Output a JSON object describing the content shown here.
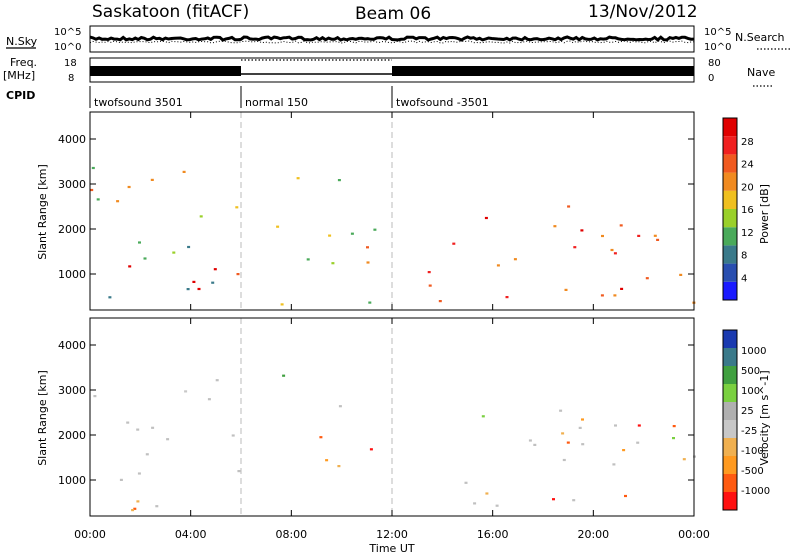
{
  "header": {
    "station": "Saskatoon (fitACF)",
    "beam": "Beam 06",
    "date": "13/Nov/2012"
  },
  "strip_labels": {
    "nsky": "N.Sky",
    "freq_top": "Freq.",
    "freq_bottom": "[MHz]",
    "cpid": "CPID",
    "nsearch": "N.Search",
    "nave": "Nave"
  },
  "strip_ticks": {
    "noise_left_top": "10^5",
    "noise_left_bottom": "10^0",
    "noise_right_top": "10^5",
    "noise_right_bottom": "10^0",
    "freq_top": "18",
    "freq_bottom": "8",
    "nave_top": "80",
    "nave_bottom": "0"
  },
  "cpid_segments": [
    {
      "label": "twofsound 3501",
      "start_hour": 0
    },
    {
      "label": "normal 150",
      "start_hour": 6
    },
    {
      "label": "twofsound -3501",
      "start_hour": 12
    }
  ],
  "colors": {
    "scale_power": [
      "#1a1aff",
      "#2a4fb0",
      "#3a7a8a",
      "#4aaa5a",
      "#9ad02a",
      "#f0c020",
      "#f08a20",
      "#f05a20",
      "#f02020",
      "#e00000"
    ],
    "scale_velocity": [
      "#ff1010",
      "#ff5a10",
      "#ff9a20",
      "#f0b050",
      "#c8c8c8",
      "#b0b0b0",
      "#7ad040",
      "#40a040",
      "#3a7a8a",
      "#1a3ab0"
    ],
    "ground_scatter": "#c0c0c0",
    "divider": "#bbbbbb"
  },
  "chart_data": [
    {
      "type": "heatmap",
      "title": "Power",
      "xlabel": "",
      "ylabel": "Slant Range [km]",
      "x_range_hours": [
        0,
        24
      ],
      "ylim": [
        200,
        4600
      ],
      "y_ticks": [
        "1000",
        "2000",
        "3000",
        "4000"
      ],
      "colorbar": {
        "label": "Power [dB]",
        "range": [
          0,
          32
        ],
        "ticks": [
          "4",
          "8",
          "12",
          "16",
          "20",
          "24",
          "28"
        ]
      },
      "scatter_regions": [
        {
          "t0": 0.0,
          "t1": 6.0,
          "r0": 300,
          "r1": 3400,
          "level": "mixed",
          "value": 14
        },
        {
          "t0": 0.0,
          "t1": 6.0,
          "r0": 400,
          "r1": 1300,
          "level": "strong",
          "value": 26
        },
        {
          "t0": 6.5,
          "t1": 12.0,
          "r0": 300,
          "r1": 2400,
          "level": "mixed",
          "value": 12
        },
        {
          "t0": 7.6,
          "t1": 10.0,
          "r0": 2600,
          "r1": 3500,
          "level": "mixed",
          "value": 14
        },
        {
          "t0": 12.0,
          "t1": 24.0,
          "r0": 300,
          "r1": 2600,
          "level": "strong",
          "value": 24
        },
        {
          "t0": 14.0,
          "t1": 24.0,
          "r0": 350,
          "r1": 700,
          "level": "strong",
          "value": 28
        }
      ]
    },
    {
      "type": "heatmap",
      "title": "Velocity",
      "xlabel": "Time UT",
      "ylabel": "Slant Range [km]",
      "x_range_hours": [
        0,
        24
      ],
      "x_ticks": [
        "00:00",
        "04:00",
        "08:00",
        "12:00",
        "16:00",
        "20:00",
        "00:00"
      ],
      "ylim": [
        200,
        4600
      ],
      "y_ticks": [
        "1000",
        "2000",
        "3000",
        "4000"
      ],
      "colorbar": {
        "label": "Velocity [m s^-1]",
        "ticks": [
          "1000",
          "500",
          "100",
          "25",
          "-25",
          "-100",
          "-500",
          "-1000"
        ]
      },
      "scatter_regions": [
        {
          "t0": 0.0,
          "t1": 6.0,
          "r0": 300,
          "r1": 3300,
          "level": "ground",
          "value": 0
        },
        {
          "t0": 0.0,
          "t1": 6.0,
          "r0": 300,
          "r1": 700,
          "level": "negative",
          "value": -200
        },
        {
          "t0": 7.6,
          "t1": 10.0,
          "r0": 2600,
          "r1": 3500,
          "level": "ground",
          "value": 0
        },
        {
          "t0": 9.0,
          "t1": 12.0,
          "r0": 600,
          "r1": 2000,
          "level": "negative",
          "value": -300
        },
        {
          "t0": 14.0,
          "t1": 24.0,
          "r0": 300,
          "r1": 2600,
          "level": "ground",
          "value": 0
        },
        {
          "t0": 17.0,
          "t1": 24.0,
          "r0": 1200,
          "r1": 2400,
          "level": "negative",
          "value": -100
        }
      ]
    }
  ]
}
